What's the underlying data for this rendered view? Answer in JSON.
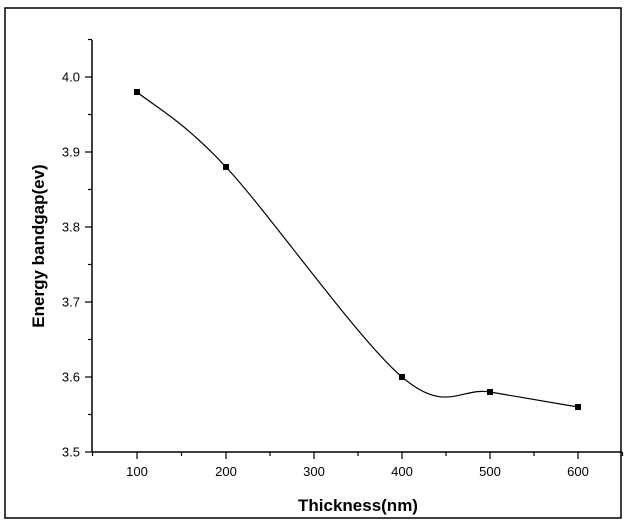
{
  "chart_data": {
    "type": "line",
    "title": "",
    "xlabel": "Thickness(nm)",
    "ylabel": "Energy bandgap(ev)",
    "x_ticks": [
      "100",
      "200",
      "300",
      "400",
      "500",
      "600"
    ],
    "y_ticks": [
      "3.5",
      "3.6",
      "3.7",
      "3.8",
      "3.9",
      "4.0"
    ],
    "ylim": [
      3.5,
      4.05
    ],
    "grid": false,
    "legend": "none",
    "smooth": true,
    "series": [
      {
        "x": [
          "100",
          "200",
          "400",
          "500",
          "600"
        ],
        "y": [
          3.98,
          3.88,
          3.6,
          3.58,
          3.56
        ],
        "marker": "square",
        "color": "#000000"
      }
    ]
  }
}
